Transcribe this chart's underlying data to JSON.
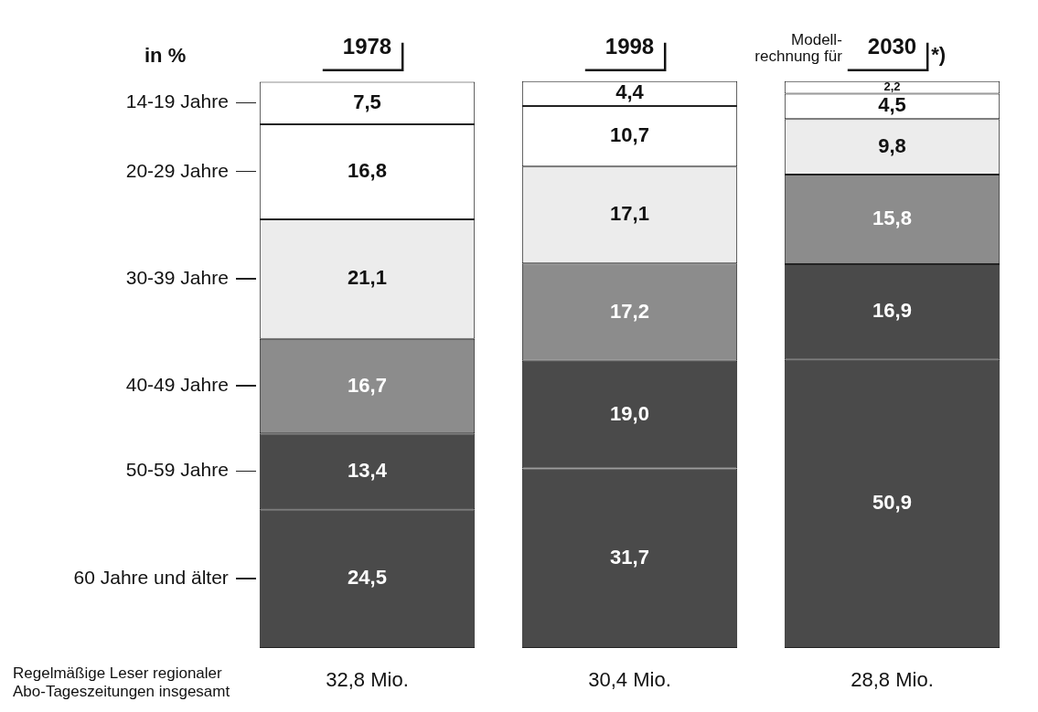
{
  "chart_data": {
    "type": "bar",
    "stacked": true,
    "categories": [
      "1978",
      "1998",
      "2030"
    ],
    "series": [
      {
        "name": "60 Jahre und älter",
        "color": "#4a4a4a",
        "values": [
          24.5,
          31.7,
          50.9
        ],
        "value_labels": [
          "24,5",
          "31,7",
          "50,9"
        ]
      },
      {
        "name": "50-59 Jahre",
        "color": "#4a4a4a",
        "values": [
          13.4,
          19.0,
          16.9
        ],
        "value_labels": [
          "13,4",
          "19,0",
          "16,9"
        ]
      },
      {
        "name": "40-49 Jahre",
        "color": "#8c8c8c",
        "values": [
          16.7,
          17.2,
          15.8
        ],
        "value_labels": [
          "16,7",
          "17,2",
          "15,8"
        ]
      },
      {
        "name": "30-39 Jahre",
        "color": "#ececec",
        "values": [
          21.1,
          17.1,
          9.8
        ],
        "value_labels": [
          "21,1",
          "17,1",
          "9,8"
        ]
      },
      {
        "name": "20-29 Jahre",
        "color": "#ffffff",
        "values": [
          16.8,
          10.7,
          4.5
        ],
        "value_labels": [
          "16,8",
          "10,7",
          "4,5"
        ]
      },
      {
        "name": "14-19 Jahre",
        "color": "#ffffff",
        "values": [
          7.5,
          4.4,
          2.2
        ],
        "value_labels": [
          "7,5",
          "4,4",
          "2,2"
        ]
      }
    ],
    "legend": "left",
    "grid": false,
    "annotations": [
      "in %",
      "Regelmäßige Leser regionaler\nAbo-Tageszeitungen insgesamt",
      "32,8 Mio.",
      "30,4 Mio.",
      "28,8 Mio.",
      "Modell-\nrechnung für",
      "*)"
    ]
  }
}
